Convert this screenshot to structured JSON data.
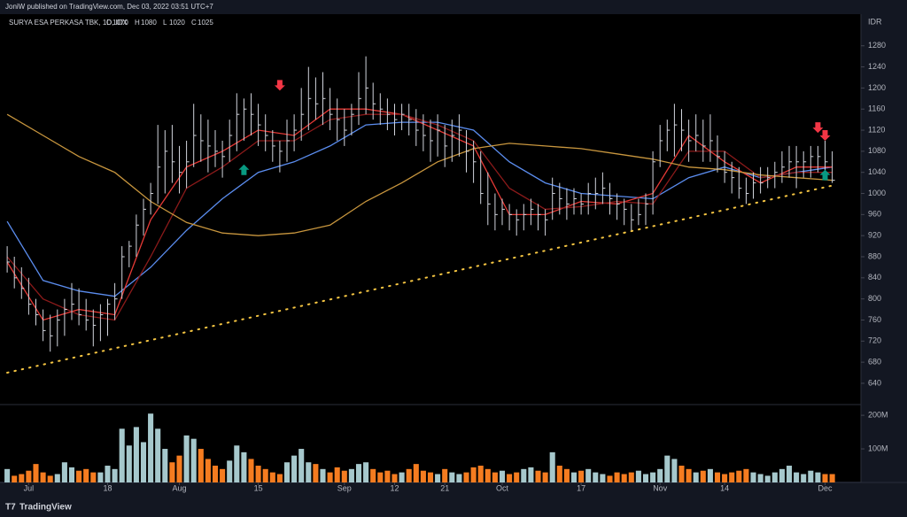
{
  "chart_data": {
    "type": "ohlc",
    "title": "JoniW published on TradingView.com, Dec 03, 2022 03:51 UTC+7",
    "symbol": "SURYA ESA PERKASA TBK, 1D, IDX",
    "ohlc_header": [
      {
        "label": "O",
        "value": 1070
      },
      {
        "label": "H",
        "value": 1080
      },
      {
        "label": "L",
        "value": 1020
      },
      {
        "label": "C",
        "value": 1025
      }
    ],
    "currency": "IDR",
    "brand": "TradingView",
    "xlim": [
      -1,
      119
    ],
    "xticks": [
      {
        "value": 3,
        "label": "Jul"
      },
      {
        "value": 14,
        "label": "18"
      },
      {
        "value": 24,
        "label": "Aug"
      },
      {
        "value": 35,
        "label": "15"
      },
      {
        "value": 47,
        "label": "Sep"
      },
      {
        "value": 54,
        "label": "12"
      },
      {
        "value": 61,
        "label": "21"
      },
      {
        "value": 69,
        "label": "Oct"
      },
      {
        "value": 80,
        "label": "17"
      },
      {
        "value": 91,
        "label": "Nov"
      },
      {
        "value": 100,
        "label": "14"
      },
      {
        "value": 114,
        "label": "Dec"
      }
    ],
    "ylim": [
      603,
      1340
    ],
    "yticks": [
      640,
      680,
      720,
      760,
      800,
      840,
      880,
      920,
      960,
      1000,
      1040,
      1080,
      1120,
      1160,
      1200,
      1240,
      1280
    ],
    "bar_color": "#d1d4dc",
    "high": [
      900,
      880,
      860,
      840,
      800,
      780,
      770,
      780,
      800,
      830,
      820,
      800,
      780,
      790,
      800,
      830,
      900,
      910,
      960,
      990,
      1020,
      1130,
      1120,
      1130,
      1090,
      1100,
      1170,
      1150,
      1140,
      1120,
      1100,
      1140,
      1190,
      1180,
      1190,
      1170,
      1150,
      1120,
      1100,
      1140,
      1150,
      1200,
      1240,
      1220,
      1230,
      1200,
      1180,
      1160,
      1170,
      1230,
      1260,
      1210,
      1190,
      1180,
      1170,
      1170,
      1170,
      1160,
      1150,
      1140,
      1150,
      1130,
      1140,
      1150,
      1120,
      1100,
      1080,
      1040,
      1000,
      990,
      980,
      970,
      980,
      990,
      980,
      970,
      1030,
      1020,
      1010,
      1010,
      1000,
      1020,
      1030,
      1040,
      1020,
      1000,
      990,
      980,
      990,
      1000,
      1080,
      1130,
      1140,
      1170,
      1160,
      1140,
      1150,
      1140,
      1150,
      1110,
      1080,
      1060,
      1050,
      1030,
      1040,
      1050,
      1050,
      1060,
      1080,
      1090,
      1090,
      1080,
      1090,
      1090,
      1100,
      1080
    ],
    "low": [
      850,
      820,
      800,
      770,
      750,
      720,
      700,
      710,
      730,
      760,
      750,
      740,
      710,
      720,
      730,
      760,
      800,
      860,
      880,
      920,
      960,
      980,
      1000,
      1020,
      1000,
      1010,
      1050,
      1060,
      1040,
      1050,
      1030,
      1060,
      1080,
      1100,
      1110,
      1090,
      1080,
      1060,
      1040,
      1060,
      1080,
      1100,
      1120,
      1140,
      1130,
      1120,
      1100,
      1090,
      1110,
      1130,
      1150,
      1140,
      1130,
      1120,
      1110,
      1120,
      1110,
      1090,
      1080,
      1060,
      1070,
      1050,
      1060,
      1070,
      1040,
      1020,
      980,
      940,
      930,
      940,
      930,
      920,
      930,
      940,
      930,
      920,
      950,
      960,
      950,
      960,
      960,
      960,
      970,
      980,
      960,
      950,
      940,
      930,
      940,
      940,
      960,
      1050,
      1080,
      1070,
      1080,
      1060,
      1080,
      1060,
      1060,
      1040,
      1020,
      1000,
      990,
      980,
      990,
      1000,
      1010,
      1010,
      1020,
      1030,
      1010,
      1030,
      1030,
      1040,
      1030,
      1020
    ],
    "close": [
      870,
      840,
      820,
      790,
      770,
      740,
      730,
      760,
      780,
      790,
      770,
      760,
      750,
      770,
      790,
      800,
      880,
      900,
      940,
      970,
      1000,
      1050,
      1080,
      1060,
      1040,
      1060,
      1110,
      1100,
      1090,
      1080,
      1070,
      1110,
      1150,
      1160,
      1150,
      1130,
      1110,
      1090,
      1080,
      1100,
      1120,
      1150,
      1180,
      1170,
      1180,
      1150,
      1140,
      1120,
      1150,
      1180,
      1200,
      1170,
      1160,
      1150,
      1140,
      1150,
      1140,
      1120,
      1110,
      1100,
      1120,
      1090,
      1110,
      1120,
      1080,
      1060,
      1000,
      980,
      960,
      970,
      960,
      950,
      960,
      970,
      960,
      950,
      1000,
      990,
      980,
      990,
      980,
      1000,
      1000,
      1010,
      990,
      980,
      970,
      950,
      960,
      980,
      1060,
      1100,
      1120,
      1130,
      1120,
      1100,
      1110,
      1090,
      1100,
      1070,
      1040,
      1030,
      1010,
      1000,
      1020,
      1020,
      1030,
      1040,
      1050,
      1060,
      1060,
      1060,
      1070,
      1070,
      1060,
      1025
    ],
    "moving_averages": [
      {
        "color": "#5b8def",
        "x": [
          0,
          5,
          10,
          15,
          20,
          25,
          30,
          35,
          40,
          45,
          50,
          55,
          60,
          65,
          70,
          75,
          80,
          85,
          90,
          95,
          100,
          105,
          110,
          115
        ],
        "values": [
          947,
          835,
          815,
          805,
          860,
          930,
          990,
          1040,
          1060,
          1090,
          1130,
          1135,
          1135,
          1120,
          1060,
          1020,
          1000,
          995,
          990,
          1030,
          1050,
          1030,
          1040,
          1050
        ]
      },
      {
        "color": "#e53935",
        "x": [
          0,
          5,
          10,
          15,
          20,
          25,
          30,
          35,
          40,
          45,
          50,
          55,
          60,
          65,
          70,
          75,
          80,
          85,
          90,
          95,
          100,
          105,
          110,
          115
        ],
        "values": [
          870,
          760,
          780,
          770,
          950,
          1050,
          1080,
          1120,
          1110,
          1160,
          1160,
          1150,
          1120,
          1090,
          960,
          960,
          985,
          980,
          1000,
          1110,
          1060,
          1020,
          1050,
          1050
        ]
      },
      {
        "color": "#8b1a1a",
        "x": [
          0,
          5,
          10,
          15,
          20,
          25,
          30,
          35,
          40,
          45,
          50,
          55,
          60,
          65,
          70,
          75,
          80,
          85,
          90,
          95,
          100,
          105,
          110,
          115
        ],
        "values": [
          880,
          800,
          770,
          760,
          880,
          1010,
          1050,
          1100,
          1100,
          1140,
          1150,
          1150,
          1130,
          1100,
          1010,
          970,
          975,
          985,
          980,
          1080,
          1080,
          1030,
          1040,
          1040
        ]
      },
      {
        "color": "#c8963e",
        "x": [
          0,
          5,
          10,
          15,
          20,
          25,
          30,
          35,
          40,
          45,
          50,
          55,
          60,
          65,
          70,
          75,
          80,
          85,
          90,
          95,
          100,
          105,
          110,
          115
        ],
        "values": [
          1150,
          1110,
          1070,
          1040,
          985,
          945,
          925,
          920,
          925,
          940,
          985,
          1020,
          1060,
          1085,
          1095,
          1090,
          1085,
          1075,
          1065,
          1050,
          1045,
          1035,
          1030,
          1025
        ]
      }
    ],
    "trendline": {
      "color": "#f5c542",
      "x": [
        0,
        115
      ],
      "values": [
        660,
        1015
      ]
    },
    "markers": [
      {
        "x": 38,
        "value": 1205,
        "direction": "down",
        "color": "#f23645"
      },
      {
        "x": 33,
        "value": 1045,
        "direction": "up",
        "color": "#089981"
      },
      {
        "x": 113,
        "value": 1125,
        "direction": "down",
        "color": "#f23645"
      },
      {
        "x": 114,
        "value": 1110,
        "direction": "down",
        "color": "#f23645"
      },
      {
        "x": 114,
        "value": 1035,
        "direction": "up",
        "color": "#089981"
      }
    ],
    "volume": {
      "ylim": [
        0,
        224
      ],
      "yticks": [
        {
          "value": 100,
          "label": "100M"
        },
        {
          "value": 200,
          "label": "200M"
        }
      ],
      "up_color": "#a6c8cc",
      "down_color": "#f57c20",
      "values": [
        40,
        20,
        25,
        35,
        55,
        30,
        20,
        25,
        60,
        45,
        35,
        40,
        30,
        30,
        50,
        40,
        160,
        110,
        165,
        120,
        205,
        160,
        100,
        60,
        80,
        140,
        130,
        100,
        70,
        50,
        40,
        65,
        110,
        90,
        70,
        50,
        40,
        30,
        25,
        60,
        80,
        100,
        60,
        55,
        40,
        30,
        45,
        35,
        40,
        55,
        60,
        40,
        30,
        35,
        25,
        30,
        40,
        55,
        35,
        30,
        25,
        40,
        30,
        25,
        30,
        45,
        50,
        40,
        30,
        35,
        25,
        30,
        40,
        45,
        35,
        30,
        90,
        50,
        40,
        30,
        35,
        40,
        30,
        25,
        20,
        30,
        25,
        30,
        35,
        25,
        30,
        40,
        80,
        70,
        50,
        40,
        30,
        35,
        40,
        30,
        25,
        30,
        35,
        40,
        30,
        25,
        20,
        30,
        40,
        50,
        30,
        25,
        35,
        30,
        25,
        25
      ]
    }
  }
}
